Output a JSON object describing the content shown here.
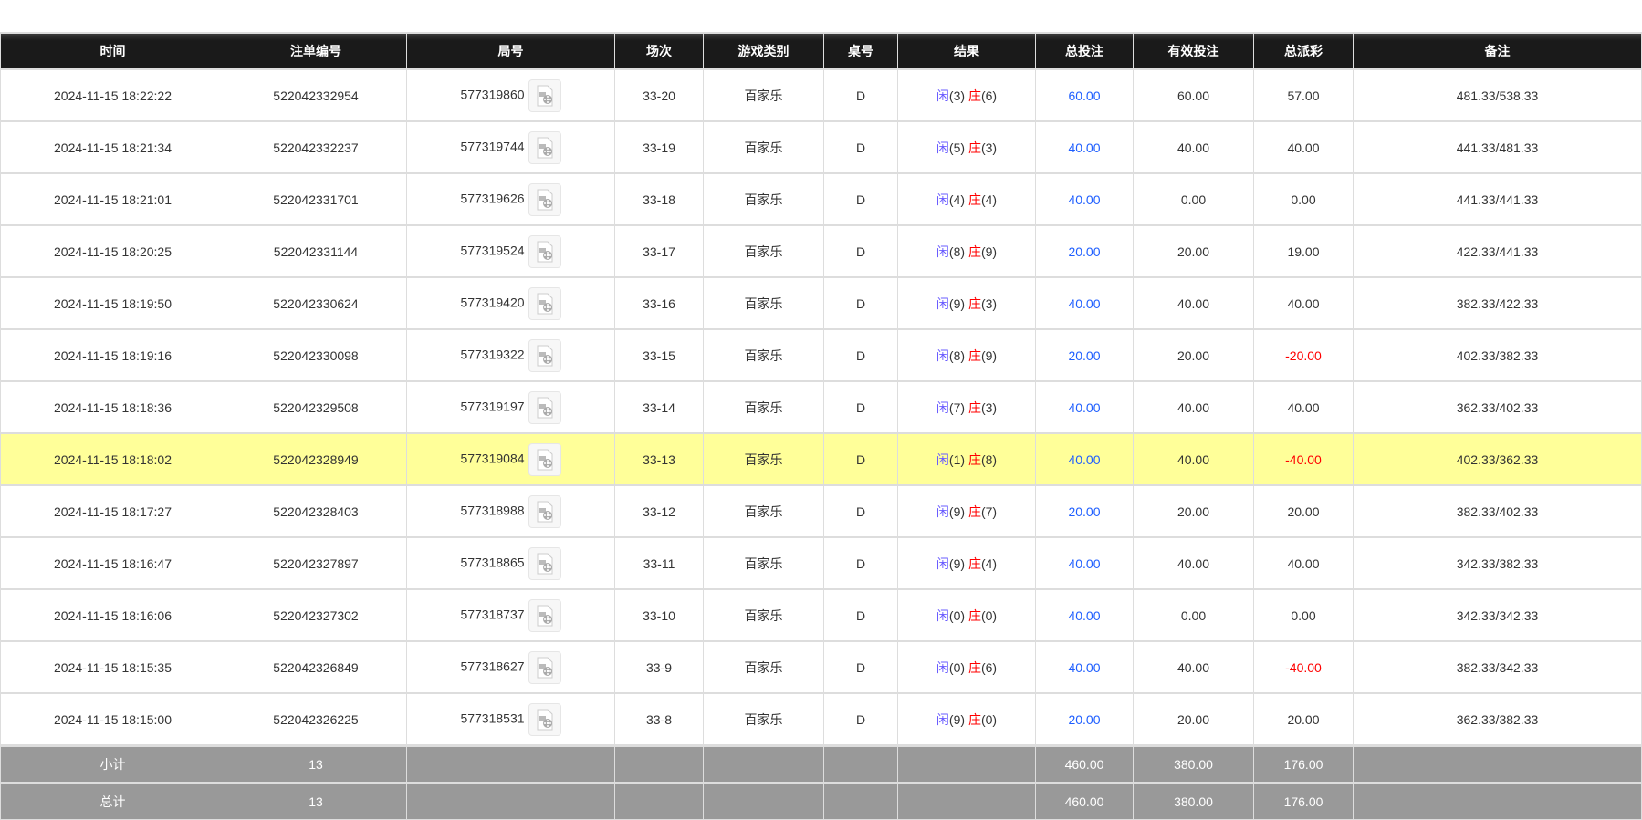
{
  "headers": [
    "时间",
    "注单编号",
    "局号",
    "场次",
    "游戏类别",
    "桌号",
    "结果",
    "总投注",
    "有效投注",
    "总派彩",
    "备注"
  ],
  "rows": [
    {
      "time": "2024-11-15 18:22:22",
      "bet_id": "522042332954",
      "round": "577319860",
      "session": "33-20",
      "game": "百家乐",
      "table": "D",
      "player": "闲",
      "player_pts": "(3)",
      "banker": "庄",
      "banker_pts": "(6)",
      "total_bet": "60.00",
      "valid_bet": "60.00",
      "payout": "57.00",
      "payout_negative": false,
      "note": "481.33/538.33",
      "highlight": false
    },
    {
      "time": "2024-11-15 18:21:34",
      "bet_id": "522042332237",
      "round": "577319744",
      "session": "33-19",
      "game": "百家乐",
      "table": "D",
      "player": "闲",
      "player_pts": "(5)",
      "banker": "庄",
      "banker_pts": "(3)",
      "total_bet": "40.00",
      "valid_bet": "40.00",
      "payout": "40.00",
      "payout_negative": false,
      "note": "441.33/481.33",
      "highlight": false
    },
    {
      "time": "2024-11-15 18:21:01",
      "bet_id": "522042331701",
      "round": "577319626",
      "session": "33-18",
      "game": "百家乐",
      "table": "D",
      "player": "闲",
      "player_pts": "(4)",
      "banker": "庄",
      "banker_pts": "(4)",
      "total_bet": "40.00",
      "valid_bet": "0.00",
      "payout": "0.00",
      "payout_negative": false,
      "note": "441.33/441.33",
      "highlight": false
    },
    {
      "time": "2024-11-15 18:20:25",
      "bet_id": "522042331144",
      "round": "577319524",
      "session": "33-17",
      "game": "百家乐",
      "table": "D",
      "player": "闲",
      "player_pts": "(8)",
      "banker": "庄",
      "banker_pts": "(9)",
      "total_bet": "20.00",
      "valid_bet": "20.00",
      "payout": "19.00",
      "payout_negative": false,
      "note": "422.33/441.33",
      "highlight": false
    },
    {
      "time": "2024-11-15 18:19:50",
      "bet_id": "522042330624",
      "round": "577319420",
      "session": "33-16",
      "game": "百家乐",
      "table": "D",
      "player": "闲",
      "player_pts": "(9)",
      "banker": "庄",
      "banker_pts": "(3)",
      "total_bet": "40.00",
      "valid_bet": "40.00",
      "payout": "40.00",
      "payout_negative": false,
      "note": "382.33/422.33",
      "highlight": false
    },
    {
      "time": "2024-11-15 18:19:16",
      "bet_id": "522042330098",
      "round": "577319322",
      "session": "33-15",
      "game": "百家乐",
      "table": "D",
      "player": "闲",
      "player_pts": "(8)",
      "banker": "庄",
      "banker_pts": "(9)",
      "total_bet": "20.00",
      "valid_bet": "20.00",
      "payout": "-20.00",
      "payout_negative": true,
      "note": "402.33/382.33",
      "highlight": false
    },
    {
      "time": "2024-11-15 18:18:36",
      "bet_id": "522042329508",
      "round": "577319197",
      "session": "33-14",
      "game": "百家乐",
      "table": "D",
      "player": "闲",
      "player_pts": "(7)",
      "banker": "庄",
      "banker_pts": "(3)",
      "total_bet": "40.00",
      "valid_bet": "40.00",
      "payout": "40.00",
      "payout_negative": false,
      "note": "362.33/402.33",
      "highlight": false
    },
    {
      "time": "2024-11-15 18:18:02",
      "bet_id": "522042328949",
      "round": "577319084",
      "session": "33-13",
      "game": "百家乐",
      "table": "D",
      "player": "闲",
      "player_pts": "(1)",
      "banker": "庄",
      "banker_pts": "(8)",
      "total_bet": "40.00",
      "valid_bet": "40.00",
      "payout": "-40.00",
      "payout_negative": true,
      "note": "402.33/362.33",
      "highlight": true
    },
    {
      "time": "2024-11-15 18:17:27",
      "bet_id": "522042328403",
      "round": "577318988",
      "session": "33-12",
      "game": "百家乐",
      "table": "D",
      "player": "闲",
      "player_pts": "(9)",
      "banker": "庄",
      "banker_pts": "(7)",
      "total_bet": "20.00",
      "valid_bet": "20.00",
      "payout": "20.00",
      "payout_negative": false,
      "note": "382.33/402.33",
      "highlight": false
    },
    {
      "time": "2024-11-15 18:16:47",
      "bet_id": "522042327897",
      "round": "577318865",
      "session": "33-11",
      "game": "百家乐",
      "table": "D",
      "player": "闲",
      "player_pts": "(9)",
      "banker": "庄",
      "banker_pts": "(4)",
      "total_bet": "40.00",
      "valid_bet": "40.00",
      "payout": "40.00",
      "payout_negative": false,
      "note": "342.33/382.33",
      "highlight": false
    },
    {
      "time": "2024-11-15 18:16:06",
      "bet_id": "522042327302",
      "round": "577318737",
      "session": "33-10",
      "game": "百家乐",
      "table": "D",
      "player": "闲",
      "player_pts": "(0)",
      "banker": "庄",
      "banker_pts": "(0)",
      "total_bet": "40.00",
      "valid_bet": "0.00",
      "payout": "0.00",
      "payout_negative": false,
      "note": "342.33/342.33",
      "highlight": false
    },
    {
      "time": "2024-11-15 18:15:35",
      "bet_id": "522042326849",
      "round": "577318627",
      "session": "33-9",
      "game": "百家乐",
      "table": "D",
      "player": "闲",
      "player_pts": "(0)",
      "banker": "庄",
      "banker_pts": "(6)",
      "total_bet": "40.00",
      "valid_bet": "40.00",
      "payout": "-40.00",
      "payout_negative": true,
      "note": "382.33/342.33",
      "highlight": false
    },
    {
      "time": "2024-11-15 18:15:00",
      "bet_id": "522042326225",
      "round": "577318531",
      "session": "33-8",
      "game": "百家乐",
      "table": "D",
      "player": "闲",
      "player_pts": "(9)",
      "banker": "庄",
      "banker_pts": "(0)",
      "total_bet": "20.00",
      "valid_bet": "20.00",
      "payout": "20.00",
      "payout_negative": false,
      "note": "362.33/382.33",
      "highlight": false
    }
  ],
  "summary": [
    {
      "label": "小计",
      "count": "13",
      "total_bet": "460.00",
      "valid_bet": "380.00",
      "payout": "176.00"
    },
    {
      "label": "总计",
      "count": "13",
      "total_bet": "460.00",
      "valid_bet": "380.00",
      "payout": "176.00"
    }
  ],
  "icons": {
    "replay": "film-replay-icon"
  },
  "colors": {
    "header_bg": "#1a1a1a",
    "highlight_row": "#ffff99",
    "summary_bg": "#999999",
    "bet_blue": "#1e5eff",
    "negative": "#ff0000",
    "banker": "#ff0000",
    "player": "#6a5cff"
  }
}
